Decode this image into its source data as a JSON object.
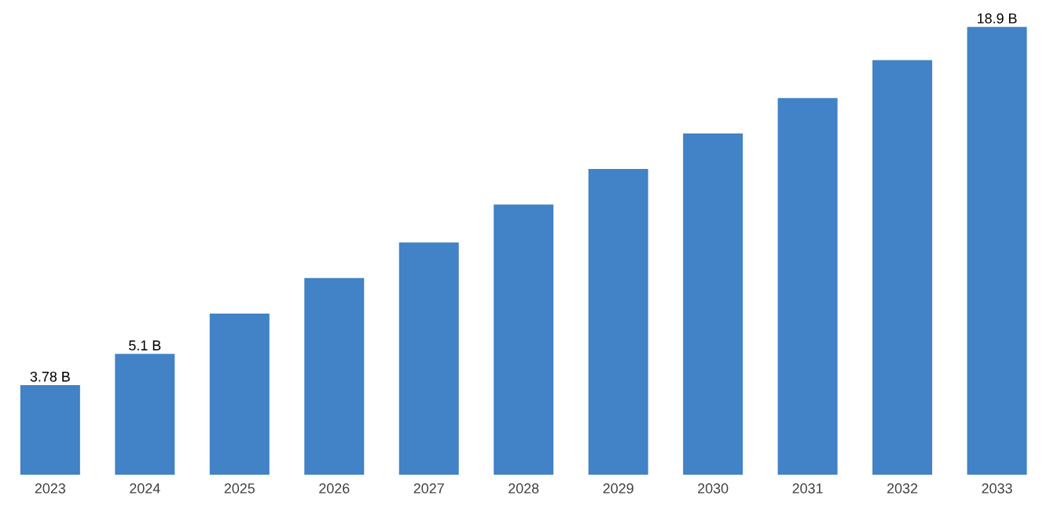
{
  "chart_data": {
    "type": "bar",
    "categories": [
      "2023",
      "2024",
      "2025",
      "2026",
      "2027",
      "2028",
      "2029",
      "2030",
      "2031",
      "2032",
      "2033"
    ],
    "values": [
      3.78,
      5.1,
      6.8,
      8.3,
      9.8,
      11.4,
      12.9,
      14.4,
      15.9,
      17.5,
      18.9
    ],
    "value_labels": [
      "3.78 B",
      "5.1 B",
      null,
      null,
      null,
      null,
      null,
      null,
      null,
      null,
      "18.9 B"
    ],
    "color": "#4282c6",
    "tick_labels": "x"
  }
}
